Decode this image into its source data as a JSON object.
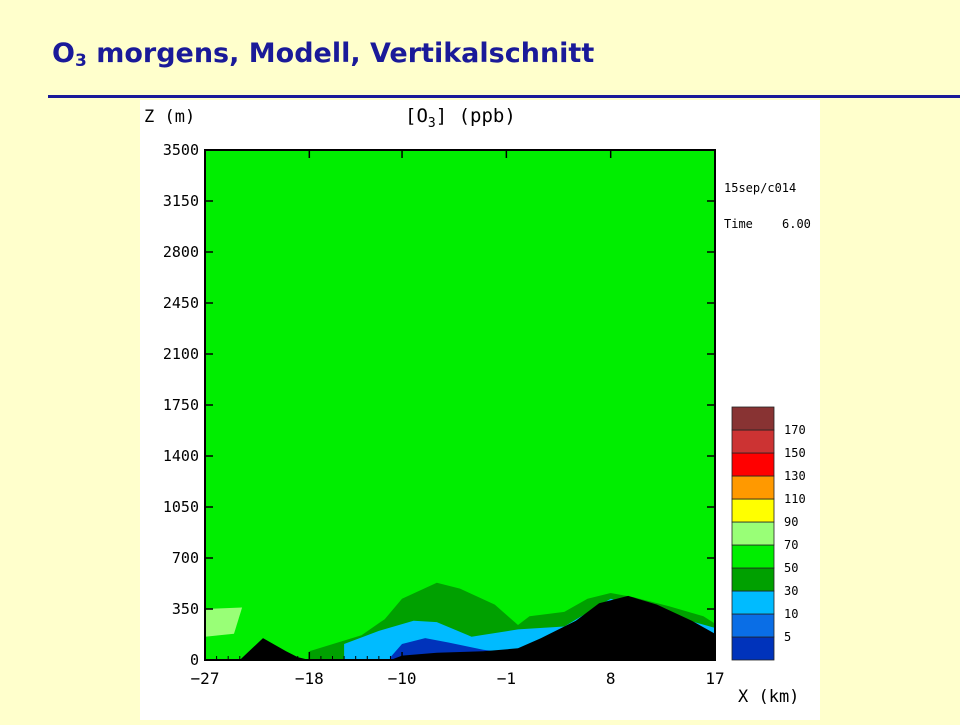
{
  "slide": {
    "title_prefix": "O",
    "title_sub": "3",
    "title_rest": " morgens, Modell, Vertikalschnitt"
  },
  "chart_data": {
    "type": "heatmap",
    "title": "[O3] (ppb)",
    "title_base": "[O",
    "title_sub": "3",
    "title_end": "] (ppb)",
    "xlabel": "X (km)",
    "ylabel": "Z (m)",
    "run_label": "15sep/c014",
    "time_label": "Time",
    "time_value": "6.00",
    "xlim": [
      -27,
      17
    ],
    "ylim": [
      0,
      3500
    ],
    "xticks": [
      "-27",
      "-18",
      "-10",
      "-1",
      "8",
      "17"
    ],
    "yticks": [
      "0",
      "350",
      "700",
      "1050",
      "1400",
      "1750",
      "2100",
      "2450",
      "2800",
      "3150",
      "3500"
    ],
    "background_level": "60-70",
    "legend": {
      "colors": [
        "#0033bb",
        "#0a6ee6",
        "#00bbff",
        "#00a000",
        "#00ee00",
        "#99ff77",
        "#ffff00",
        "#ff9900",
        "#ff0000",
        "#cc3333",
        "#883333"
      ],
      "labels": [
        "5",
        "10",
        "30",
        "50",
        "70",
        "90",
        "110",
        "130",
        "150",
        "170"
      ]
    },
    "regions": [
      {
        "name": "light-green-left",
        "level": "70-90",
        "color": "#99ff77",
        "points": [
          [
            -27,
            160
          ],
          [
            -24.5,
            180
          ],
          [
            -23.8,
            360
          ],
          [
            -27,
            350
          ]
        ]
      },
      {
        "name": "dark-green-plume",
        "level": "30-50",
        "color": "#00a000",
        "points": [
          [
            -18,
            60
          ],
          [
            -13.5,
            170
          ],
          [
            -11.5,
            280
          ],
          [
            -10,
            420
          ],
          [
            -7,
            530
          ],
          [
            -5,
            490
          ],
          [
            -2,
            380
          ],
          [
            0,
            240
          ],
          [
            1,
            300
          ],
          [
            4,
            330
          ],
          [
            6,
            420
          ],
          [
            8,
            460
          ],
          [
            10,
            430
          ],
          [
            13,
            370
          ],
          [
            16,
            300
          ],
          [
            17,
            250
          ],
          [
            17,
            0
          ],
          [
            -18,
            0
          ]
        ]
      },
      {
        "name": "light-blue-pocket",
        "level": "10-30",
        "color": "#00bbff",
        "points": [
          [
            -15,
            110
          ],
          [
            -12,
            200
          ],
          [
            -9,
            270
          ],
          [
            -7,
            260
          ],
          [
            -4,
            160
          ],
          [
            0,
            210
          ],
          [
            4,
            230
          ],
          [
            8,
            420
          ],
          [
            17,
            220
          ],
          [
            17,
            0
          ],
          [
            -15,
            0
          ]
        ]
      },
      {
        "name": "dark-blue-core",
        "level": "5-10",
        "color": "#0033bb",
        "points": [
          [
            -11,
            20
          ],
          [
            -10,
            110
          ],
          [
            -8,
            150
          ],
          [
            -6,
            120
          ],
          [
            -3,
            70
          ],
          [
            0,
            40
          ],
          [
            -1,
            0
          ],
          [
            -11,
            0
          ]
        ]
      }
    ],
    "terrain": [
      [
        -27,
        0
      ],
      [
        -24,
        0
      ],
      [
        -22,
        150
      ],
      [
        -20,
        60
      ],
      [
        -19,
        20
      ],
      [
        -18,
        0
      ],
      [
        -11,
        0
      ],
      [
        -10,
        30
      ],
      [
        -7,
        50
      ],
      [
        -3,
        60
      ],
      [
        0,
        80
      ],
      [
        2,
        150
      ],
      [
        5,
        270
      ],
      [
        7,
        390
      ],
      [
        9.5,
        440
      ],
      [
        12,
        380
      ],
      [
        15,
        270
      ],
      [
        17,
        180
      ],
      [
        17,
        0
      ]
    ]
  }
}
